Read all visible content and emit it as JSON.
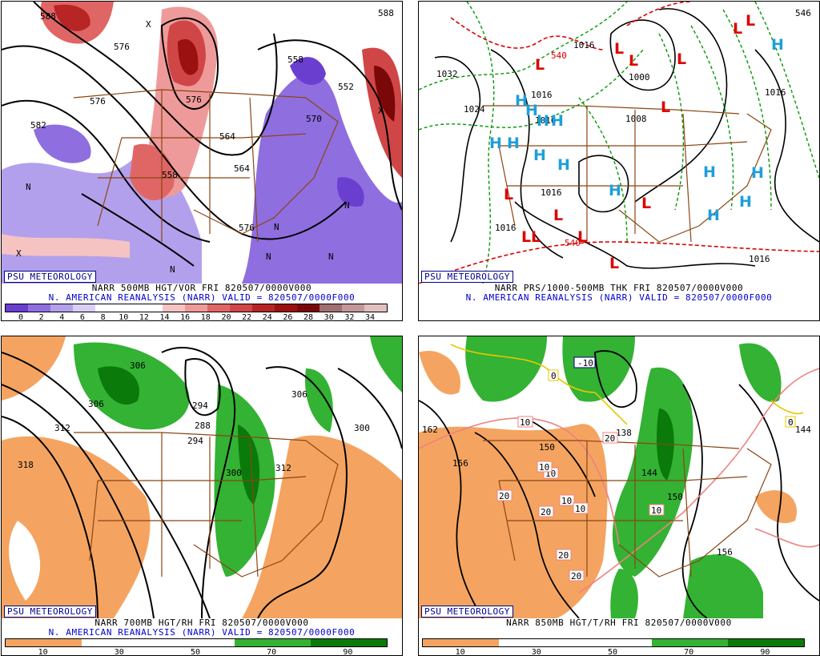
{
  "badge": "PSU METEOROLOGY",
  "subtitle": "N. AMERICAN REANALYSIS (NARR) VALID = 820507/0000F000",
  "panels": {
    "p1": {
      "title": "NARR 500MB HGT/VOR FRI 820507/0000V000",
      "colorbar_ticks": [
        "0",
        "2",
        "4",
        "6",
        "8",
        "10",
        "12",
        "14",
        "16",
        "18",
        "20",
        "22",
        "24",
        "26",
        "28",
        "30",
        "32",
        "34"
      ],
      "colors": [
        "#6a3fd0",
        "#8f6ee0",
        "#b3a0ec",
        "#d9cff6",
        "#ffffff",
        "#ffffff",
        "#ffffff",
        "#f6c3c3",
        "#ef9a9a",
        "#e06666",
        "#d04646",
        "#b82525",
        "#9b1010",
        "#7a0808",
        "#a07070",
        "#c49898",
        "#e2c0c0"
      ],
      "contour_labels": [
        "588",
        "576",
        "582",
        "576",
        "564",
        "558",
        "576",
        "588",
        "576",
        "558",
        "564",
        "570",
        "552"
      ],
      "vort_marks": [
        "N",
        "N",
        "N",
        "N",
        "N",
        "N",
        "X",
        "X",
        "X"
      ]
    },
    "p2": {
      "title": "NARR PRS/1000-500MB THK FRI 820507/0000V000",
      "contour_labels": [
        "1032",
        "1024",
        "1016",
        "1016",
        "1008",
        "1000",
        "1016",
        "1016",
        "1016",
        "1016",
        "1016",
        "540",
        "540",
        "546"
      ],
      "highs": [
        "H",
        "H",
        "H",
        "H",
        "H",
        "H",
        "H",
        "H",
        "H",
        "H",
        "H",
        "H",
        "H",
        "H"
      ],
      "lows": [
        "L",
        "L",
        "L",
        "L",
        "L",
        "L",
        "L",
        "L",
        "L",
        "L",
        "L",
        "L",
        "L",
        "L"
      ]
    },
    "p3": {
      "title": "NARR 700MB HGT/RH FRI 820507/0000V000",
      "colorbar_ticks": [
        "10",
        "30",
        "50",
        "70",
        "90"
      ],
      "colors": [
        "#f4a460",
        "#ffffff",
        "#ffffff",
        "#33b233",
        "#0a7a0a"
      ],
      "contour_labels": [
        "318",
        "312",
        "306",
        "294",
        "288",
        "294",
        "300",
        "306",
        "312",
        "300",
        "306"
      ]
    },
    "p4": {
      "title": "NARR 850MB HGT/T/RH FRI 820507/0000V000",
      "colorbar_ticks": [
        "10",
        "30",
        "50",
        "70",
        "90"
      ],
      "colors": [
        "#f4a460",
        "#ffffff",
        "#ffffff",
        "#33b233",
        "#0a7a0a"
      ],
      "contour_labels": [
        "162",
        "156",
        "150",
        "138",
        "144",
        "150",
        "156",
        "144"
      ],
      "temp_labels": [
        "-10",
        "0",
        "0",
        "10",
        "10",
        "10",
        "10",
        "10",
        "20",
        "20",
        "20",
        "20",
        "20",
        "10"
      ]
    }
  }
}
